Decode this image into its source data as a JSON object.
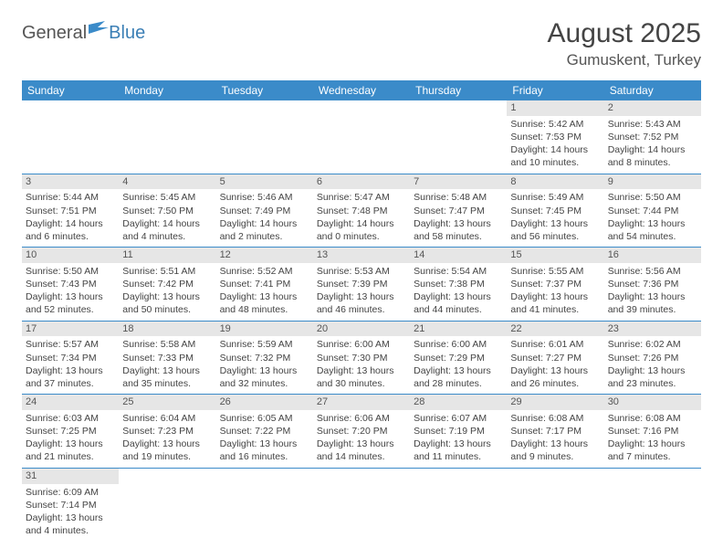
{
  "logo": {
    "general": "General",
    "blue": "Blue"
  },
  "title": "August 2025",
  "location": "Gumuskent, Turkey",
  "colors": {
    "header_bg": "#3b8bc9",
    "header_text": "#ffffff",
    "daynum_bg": "#e6e6e6",
    "rule": "#3b8bc9",
    "body_text": "#444444"
  },
  "weekdays": [
    "Sunday",
    "Monday",
    "Tuesday",
    "Wednesday",
    "Thursday",
    "Friday",
    "Saturday"
  ],
  "weeks": [
    [
      null,
      null,
      null,
      null,
      null,
      {
        "d": "1",
        "sr": "Sunrise: 5:42 AM",
        "ss": "Sunset: 7:53 PM",
        "dl1": "Daylight: 14 hours",
        "dl2": "and 10 minutes."
      },
      {
        "d": "2",
        "sr": "Sunrise: 5:43 AM",
        "ss": "Sunset: 7:52 PM",
        "dl1": "Daylight: 14 hours",
        "dl2": "and 8 minutes."
      }
    ],
    [
      {
        "d": "3",
        "sr": "Sunrise: 5:44 AM",
        "ss": "Sunset: 7:51 PM",
        "dl1": "Daylight: 14 hours",
        "dl2": "and 6 minutes."
      },
      {
        "d": "4",
        "sr": "Sunrise: 5:45 AM",
        "ss": "Sunset: 7:50 PM",
        "dl1": "Daylight: 14 hours",
        "dl2": "and 4 minutes."
      },
      {
        "d": "5",
        "sr": "Sunrise: 5:46 AM",
        "ss": "Sunset: 7:49 PM",
        "dl1": "Daylight: 14 hours",
        "dl2": "and 2 minutes."
      },
      {
        "d": "6",
        "sr": "Sunrise: 5:47 AM",
        "ss": "Sunset: 7:48 PM",
        "dl1": "Daylight: 14 hours",
        "dl2": "and 0 minutes."
      },
      {
        "d": "7",
        "sr": "Sunrise: 5:48 AM",
        "ss": "Sunset: 7:47 PM",
        "dl1": "Daylight: 13 hours",
        "dl2": "and 58 minutes."
      },
      {
        "d": "8",
        "sr": "Sunrise: 5:49 AM",
        "ss": "Sunset: 7:45 PM",
        "dl1": "Daylight: 13 hours",
        "dl2": "and 56 minutes."
      },
      {
        "d": "9",
        "sr": "Sunrise: 5:50 AM",
        "ss": "Sunset: 7:44 PM",
        "dl1": "Daylight: 13 hours",
        "dl2": "and 54 minutes."
      }
    ],
    [
      {
        "d": "10",
        "sr": "Sunrise: 5:50 AM",
        "ss": "Sunset: 7:43 PM",
        "dl1": "Daylight: 13 hours",
        "dl2": "and 52 minutes."
      },
      {
        "d": "11",
        "sr": "Sunrise: 5:51 AM",
        "ss": "Sunset: 7:42 PM",
        "dl1": "Daylight: 13 hours",
        "dl2": "and 50 minutes."
      },
      {
        "d": "12",
        "sr": "Sunrise: 5:52 AM",
        "ss": "Sunset: 7:41 PM",
        "dl1": "Daylight: 13 hours",
        "dl2": "and 48 minutes."
      },
      {
        "d": "13",
        "sr": "Sunrise: 5:53 AM",
        "ss": "Sunset: 7:39 PM",
        "dl1": "Daylight: 13 hours",
        "dl2": "and 46 minutes."
      },
      {
        "d": "14",
        "sr": "Sunrise: 5:54 AM",
        "ss": "Sunset: 7:38 PM",
        "dl1": "Daylight: 13 hours",
        "dl2": "and 44 minutes."
      },
      {
        "d": "15",
        "sr": "Sunrise: 5:55 AM",
        "ss": "Sunset: 7:37 PM",
        "dl1": "Daylight: 13 hours",
        "dl2": "and 41 minutes."
      },
      {
        "d": "16",
        "sr": "Sunrise: 5:56 AM",
        "ss": "Sunset: 7:36 PM",
        "dl1": "Daylight: 13 hours",
        "dl2": "and 39 minutes."
      }
    ],
    [
      {
        "d": "17",
        "sr": "Sunrise: 5:57 AM",
        "ss": "Sunset: 7:34 PM",
        "dl1": "Daylight: 13 hours",
        "dl2": "and 37 minutes."
      },
      {
        "d": "18",
        "sr": "Sunrise: 5:58 AM",
        "ss": "Sunset: 7:33 PM",
        "dl1": "Daylight: 13 hours",
        "dl2": "and 35 minutes."
      },
      {
        "d": "19",
        "sr": "Sunrise: 5:59 AM",
        "ss": "Sunset: 7:32 PM",
        "dl1": "Daylight: 13 hours",
        "dl2": "and 32 minutes."
      },
      {
        "d": "20",
        "sr": "Sunrise: 6:00 AM",
        "ss": "Sunset: 7:30 PM",
        "dl1": "Daylight: 13 hours",
        "dl2": "and 30 minutes."
      },
      {
        "d": "21",
        "sr": "Sunrise: 6:00 AM",
        "ss": "Sunset: 7:29 PM",
        "dl1": "Daylight: 13 hours",
        "dl2": "and 28 minutes."
      },
      {
        "d": "22",
        "sr": "Sunrise: 6:01 AM",
        "ss": "Sunset: 7:27 PM",
        "dl1": "Daylight: 13 hours",
        "dl2": "and 26 minutes."
      },
      {
        "d": "23",
        "sr": "Sunrise: 6:02 AM",
        "ss": "Sunset: 7:26 PM",
        "dl1": "Daylight: 13 hours",
        "dl2": "and 23 minutes."
      }
    ],
    [
      {
        "d": "24",
        "sr": "Sunrise: 6:03 AM",
        "ss": "Sunset: 7:25 PM",
        "dl1": "Daylight: 13 hours",
        "dl2": "and 21 minutes."
      },
      {
        "d": "25",
        "sr": "Sunrise: 6:04 AM",
        "ss": "Sunset: 7:23 PM",
        "dl1": "Daylight: 13 hours",
        "dl2": "and 19 minutes."
      },
      {
        "d": "26",
        "sr": "Sunrise: 6:05 AM",
        "ss": "Sunset: 7:22 PM",
        "dl1": "Daylight: 13 hours",
        "dl2": "and 16 minutes."
      },
      {
        "d": "27",
        "sr": "Sunrise: 6:06 AM",
        "ss": "Sunset: 7:20 PM",
        "dl1": "Daylight: 13 hours",
        "dl2": "and 14 minutes."
      },
      {
        "d": "28",
        "sr": "Sunrise: 6:07 AM",
        "ss": "Sunset: 7:19 PM",
        "dl1": "Daylight: 13 hours",
        "dl2": "and 11 minutes."
      },
      {
        "d": "29",
        "sr": "Sunrise: 6:08 AM",
        "ss": "Sunset: 7:17 PM",
        "dl1": "Daylight: 13 hours",
        "dl2": "and 9 minutes."
      },
      {
        "d": "30",
        "sr": "Sunrise: 6:08 AM",
        "ss": "Sunset: 7:16 PM",
        "dl1": "Daylight: 13 hours",
        "dl2": "and 7 minutes."
      }
    ],
    [
      {
        "d": "31",
        "sr": "Sunrise: 6:09 AM",
        "ss": "Sunset: 7:14 PM",
        "dl1": "Daylight: 13 hours",
        "dl2": "and 4 minutes."
      },
      null,
      null,
      null,
      null,
      null,
      null
    ]
  ]
}
